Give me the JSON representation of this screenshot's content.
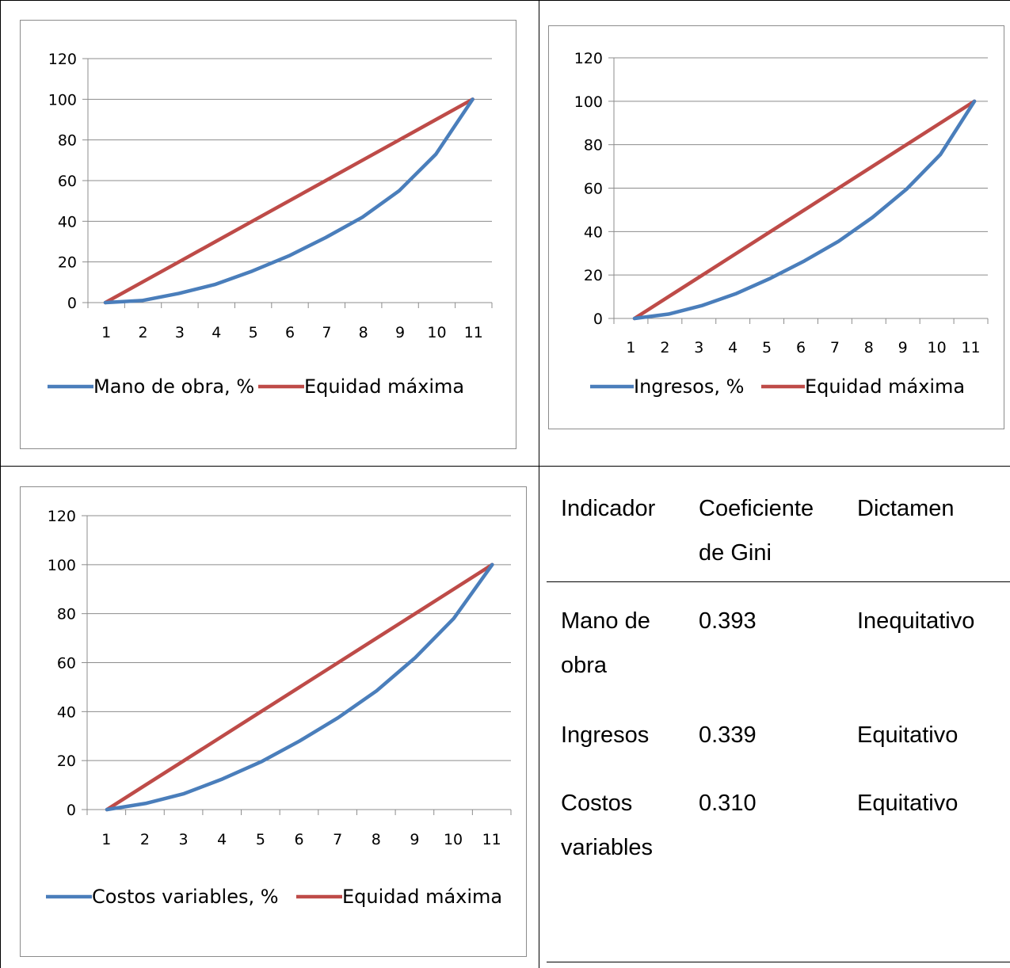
{
  "colors": {
    "series": "#4a7ebb",
    "equity": "#be4b48",
    "grid": "#8c8c8c"
  },
  "chart_data": [
    {
      "type": "line",
      "x": [
        1,
        2,
        3,
        4,
        5,
        6,
        7,
        8,
        9,
        10,
        11
      ],
      "ylim": [
        0,
        120
      ],
      "yticks": [
        0,
        20,
        40,
        60,
        80,
        100,
        120
      ],
      "grid": true,
      "legend_position": "bottom",
      "series": [
        {
          "name": "Mano de obra, %",
          "values": [
            0,
            1,
            4.5,
            9,
            15.5,
            23,
            32,
            42,
            55,
            73,
            100
          ]
        },
        {
          "name": "Equidad máxima",
          "values": [
            0,
            10,
            20,
            30,
            40,
            50,
            60,
            70,
            80,
            90,
            100
          ]
        }
      ]
    },
    {
      "type": "line",
      "x": [
        1,
        2,
        3,
        4,
        5,
        6,
        7,
        8,
        9,
        10,
        11
      ],
      "ylim": [
        0,
        120
      ],
      "yticks": [
        0,
        20,
        40,
        60,
        80,
        100,
        120
      ],
      "grid": true,
      "legend_position": "bottom",
      "series": [
        {
          "name": "Ingresos, %",
          "values": [
            0,
            2,
            6,
            11.5,
            18.5,
            26.5,
            35.5,
            46.5,
            59.5,
            75.5,
            100
          ]
        },
        {
          "name": "Equidad máxima",
          "values": [
            0,
            10,
            20,
            30,
            40,
            50,
            60,
            70,
            80,
            90,
            100
          ]
        }
      ]
    },
    {
      "type": "line",
      "x": [
        1,
        2,
        3,
        4,
        5,
        6,
        7,
        8,
        9,
        10,
        11
      ],
      "ylim": [
        0,
        120
      ],
      "yticks": [
        0,
        20,
        40,
        60,
        80,
        100,
        120
      ],
      "grid": true,
      "legend_position": "bottom",
      "series": [
        {
          "name": "Costos variables, %",
          "values": [
            0,
            2.5,
            6.5,
            12.5,
            19.5,
            28,
            37.5,
            48.5,
            62,
            78,
            100
          ]
        },
        {
          "name": "Equidad máxima",
          "values": [
            0,
            10,
            20,
            30,
            40,
            50,
            60,
            70,
            80,
            90,
            100
          ]
        }
      ]
    }
  ],
  "table": {
    "headers": [
      "Indicador",
      "Coeficiente de Gini",
      "Dictamen"
    ],
    "header_lines": [
      [
        "Indicador"
      ],
      [
        "Coeficiente",
        "de Gini"
      ],
      [
        "Dictamen"
      ]
    ],
    "rows": [
      {
        "indicador": [
          "Mano de",
          "obra"
        ],
        "gini": "0.393",
        "dictamen": "Inequitativo"
      },
      {
        "indicador": [
          "Ingresos"
        ],
        "gini": "0.339",
        "dictamen": "Equitativo"
      },
      {
        "indicador": [
          "Costos",
          "variables"
        ],
        "gini": "0.310",
        "dictamen": "Equitativo"
      }
    ]
  }
}
